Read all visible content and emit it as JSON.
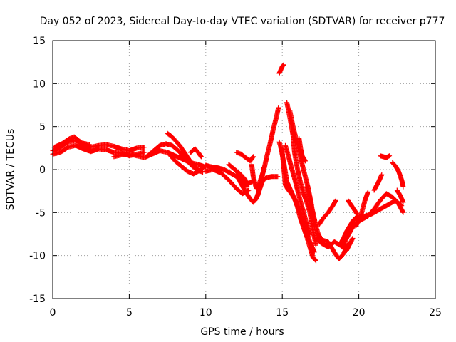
{
  "chart_data": {
    "type": "scatter",
    "title": "Day 052 of 2023, Sidereal Day-to-day VTEC variation (SDTVAR) for receiver p777",
    "xlabel": "GPS time / hours",
    "ylabel": "SDTVAR / TECUs",
    "xlim": [
      0,
      25
    ],
    "ylim": [
      -15,
      15
    ],
    "xticks": [
      0,
      5,
      10,
      15,
      20,
      25
    ],
    "yticks": [
      -15,
      -10,
      -5,
      0,
      5,
      10,
      15
    ],
    "xtick_labels": [
      "0",
      "5",
      "10",
      "15",
      "20",
      "25"
    ],
    "ytick_labels": [
      "-15",
      "-10",
      "-5",
      "0",
      "5",
      "10",
      "15"
    ],
    "grid": true,
    "marker": "+",
    "series": [
      {
        "name": "SDTVAR",
        "color": "#ff0000",
        "tracks": [
          [
            [
              0.0,
              2.2
            ],
            [
              0.5,
              2.6
            ],
            [
              1.0,
              3.2
            ],
            [
              1.5,
              3.4
            ],
            [
              2.0,
              2.9
            ],
            [
              2.5,
              2.6
            ],
            [
              3.0,
              2.8
            ],
            [
              3.5,
              2.9
            ],
            [
              4.0,
              2.7
            ],
            [
              4.5,
              2.4
            ],
            [
              5.0,
              2.2
            ],
            [
              5.5,
              2.5
            ],
            [
              6.0,
              2.6
            ]
          ],
          [
            [
              0.0,
              1.8
            ],
            [
              0.5,
              2.0
            ],
            [
              1.0,
              2.6
            ],
            [
              1.5,
              2.8
            ],
            [
              2.0,
              2.4
            ],
            [
              2.5,
              2.1
            ],
            [
              3.0,
              2.4
            ],
            [
              3.5,
              2.3
            ],
            [
              4.0,
              2.0
            ],
            [
              4.5,
              1.9
            ],
            [
              5.0,
              1.6
            ],
            [
              5.5,
              1.8
            ],
            [
              6.0,
              2.0
            ]
          ],
          [
            [
              0.1,
              2.6
            ],
            [
              0.6,
              3.0
            ],
            [
              1.1,
              3.6
            ],
            [
              1.4,
              3.8
            ],
            [
              1.9,
              3.1
            ],
            [
              2.4,
              2.9
            ]
          ],
          [
            [
              4.0,
              1.5
            ],
            [
              4.5,
              1.7
            ],
            [
              5.0,
              1.8
            ],
            [
              5.5,
              1.6
            ],
            [
              6.0,
              1.4
            ],
            [
              6.5,
              1.8
            ],
            [
              7.0,
              2.2
            ],
            [
              7.5,
              2.0
            ],
            [
              8.0,
              1.6
            ],
            [
              8.5,
              1.2
            ],
            [
              9.0,
              0.8
            ],
            [
              9.5,
              0.6
            ],
            [
              10.0,
              0.3
            ]
          ],
          [
            [
              6.2,
              1.6
            ],
            [
              6.6,
              2.2
            ],
            [
              7.0,
              2.8
            ],
            [
              7.4,
              3.0
            ],
            [
              7.8,
              2.8
            ],
            [
              8.2,
              2.2
            ],
            [
              8.6,
              1.4
            ],
            [
              9.0,
              0.6
            ],
            [
              9.4,
              0.0
            ],
            [
              9.8,
              -0.3
            ]
          ],
          [
            [
              7.5,
              4.2
            ],
            [
              7.8,
              3.8
            ],
            [
              8.0,
              3.4
            ],
            [
              8.3,
              2.8
            ],
            [
              8.6,
              2.0
            ],
            [
              8.9,
              1.2
            ],
            [
              9.2,
              0.5
            ],
            [
              9.5,
              0.0
            ]
          ],
          [
            [
              7.6,
              1.8
            ],
            [
              8.0,
              1.0
            ],
            [
              8.4,
              0.4
            ],
            [
              8.8,
              -0.2
            ],
            [
              9.2,
              -0.5
            ],
            [
              9.6,
              -0.1
            ],
            [
              10.0,
              0.4
            ]
          ],
          [
            [
              9.0,
              2.0
            ],
            [
              9.3,
              2.4
            ],
            [
              9.5,
              2.0
            ],
            [
              9.7,
              1.5
            ]
          ],
          [
            [
              10.0,
              0.5
            ],
            [
              10.4,
              0.3
            ],
            [
              10.8,
              0.2
            ],
            [
              11.2,
              0.0
            ],
            [
              11.6,
              -0.4
            ],
            [
              12.0,
              -0.8
            ],
            [
              12.4,
              -1.2
            ],
            [
              12.8,
              -1.6
            ],
            [
              13.2,
              -1.2
            ]
          ],
          [
            [
              10.0,
              -0.2
            ],
            [
              10.5,
              0.0
            ],
            [
              11.0,
              -0.4
            ],
            [
              11.5,
              -1.2
            ],
            [
              12.0,
              -2.2
            ],
            [
              12.4,
              -2.8
            ],
            [
              12.8,
              -2.4
            ]
          ],
          [
            [
              11.5,
              0.6
            ],
            [
              11.9,
              0.0
            ],
            [
              12.3,
              -0.6
            ],
            [
              12.6,
              -1.2
            ]
          ],
          [
            [
              12.0,
              -0.6
            ],
            [
              12.3,
              -1.6
            ],
            [
              12.6,
              -2.6
            ],
            [
              12.9,
              -3.4
            ],
            [
              13.1,
              -3.8
            ],
            [
              13.3,
              -3.4
            ],
            [
              13.5,
              -2.4
            ],
            [
              13.7,
              -1.4
            ],
            [
              13.9,
              -1.0
            ],
            [
              14.3,
              -0.8
            ],
            [
              14.7,
              -0.8
            ]
          ],
          [
            [
              12.0,
              -0.2
            ],
            [
              12.4,
              -1.0
            ],
            [
              12.7,
              -2.0
            ]
          ],
          [
            [
              12.0,
              2.0
            ],
            [
              12.3,
              1.8
            ],
            [
              12.6,
              1.4
            ],
            [
              12.9,
              1.0
            ],
            [
              13.1,
              1.5
            ]
          ],
          [
            [
              13.0,
              0.6
            ],
            [
              13.1,
              -0.8
            ],
            [
              13.3,
              -2.2
            ],
            [
              13.5,
              -1.6
            ],
            [
              13.8,
              0.0
            ],
            [
              14.0,
              1.6
            ],
            [
              14.2,
              3.0
            ],
            [
              14.4,
              4.6
            ],
            [
              14.6,
              6.0
            ],
            [
              14.75,
              7.2
            ]
          ],
          [
            [
              13.2,
              -3.6
            ],
            [
              13.4,
              -3.0
            ],
            [
              13.6,
              -1.6
            ],
            [
              13.8,
              0.2
            ]
          ],
          [
            [
              14.8,
              11.2
            ],
            [
              14.9,
              11.6
            ],
            [
              15.0,
              12.0
            ],
            [
              15.1,
              12.2
            ]
          ],
          [
            [
              14.8,
              3.2
            ],
            [
              15.0,
              2.0
            ],
            [
              15.1,
              0.2
            ],
            [
              15.2,
              -1.8
            ],
            [
              15.4,
              -2.4
            ],
            [
              15.6,
              -2.8
            ],
            [
              15.8,
              -3.4
            ],
            [
              16.0,
              -4.4
            ],
            [
              16.2,
              -5.8
            ],
            [
              16.4,
              -6.8
            ],
            [
              16.6,
              -7.8
            ],
            [
              16.8,
              -9.0
            ],
            [
              17.0,
              -10.2
            ],
            [
              17.2,
              -10.6
            ]
          ],
          [
            [
              14.9,
              2.6
            ],
            [
              15.1,
              0.8
            ],
            [
              15.3,
              -1.4
            ],
            [
              15.6,
              -2.6
            ],
            [
              15.9,
              -3.8
            ],
            [
              16.2,
              -5.2
            ],
            [
              16.5,
              -6.8
            ],
            [
              16.8,
              -8.4
            ],
            [
              17.1,
              -9.6
            ]
          ],
          [
            [
              15.2,
              2.8
            ],
            [
              15.4,
              1.6
            ],
            [
              15.6,
              0.2
            ],
            [
              15.8,
              -1.0
            ],
            [
              16.0,
              -2.4
            ],
            [
              16.2,
              -3.8
            ],
            [
              16.4,
              -5.0
            ],
            [
              16.6,
              -6.4
            ],
            [
              16.8,
              -7.6
            ]
          ],
          [
            [
              15.3,
              7.8
            ],
            [
              15.5,
              6.0
            ],
            [
              15.7,
              4.0
            ],
            [
              15.8,
              2.0
            ],
            [
              16.0,
              0.0
            ],
            [
              16.2,
              -1.6
            ],
            [
              16.4,
              -2.8
            ],
            [
              16.6,
              -3.8
            ],
            [
              16.8,
              -5.0
            ],
            [
              17.0,
              -7.0
            ],
            [
              17.2,
              -8.8
            ]
          ],
          [
            [
              15.5,
              6.8
            ],
            [
              15.7,
              5.0
            ],
            [
              15.9,
              3.6
            ],
            [
              16.1,
              2.2
            ],
            [
              16.3,
              0.6
            ],
            [
              16.5,
              -0.8
            ],
            [
              16.7,
              -2.2
            ],
            [
              16.9,
              -4.0
            ],
            [
              17.0,
              -5.6
            ]
          ],
          [
            [
              16.1,
              3.6
            ],
            [
              16.2,
              2.4
            ],
            [
              16.3,
              1.6
            ],
            [
              16.5,
              1.0
            ]
          ],
          [
            [
              16.6,
              -2.0
            ],
            [
              16.8,
              -3.4
            ],
            [
              17.0,
              -5.0
            ],
            [
              17.2,
              -6.6
            ],
            [
              17.4,
              -7.8
            ],
            [
              17.6,
              -8.4
            ]
          ],
          [
            [
              17.2,
              -8.0
            ],
            [
              17.6,
              -8.6
            ],
            [
              18.0,
              -9.0
            ],
            [
              18.4,
              -8.4
            ],
            [
              18.8,
              -8.8
            ],
            [
              19.2,
              -9.4
            ],
            [
              19.6,
              -8.0
            ]
          ],
          [
            [
              17.3,
              -7.4
            ],
            [
              17.6,
              -8.2
            ],
            [
              18.0,
              -8.4
            ],
            [
              18.4,
              -9.6
            ],
            [
              18.7,
              -10.4
            ],
            [
              19.0,
              -9.8
            ],
            [
              19.3,
              -8.6
            ]
          ],
          [
            [
              17.4,
              -6.4
            ],
            [
              17.7,
              -5.6
            ],
            [
              18.0,
              -5.0
            ],
            [
              18.3,
              -4.2
            ],
            [
              18.5,
              -3.6
            ]
          ],
          [
            [
              18.8,
              -8.6
            ],
            [
              19.0,
              -8.0
            ],
            [
              19.2,
              -7.2
            ],
            [
              19.4,
              -6.6
            ],
            [
              19.6,
              -6.0
            ],
            [
              19.8,
              -5.6
            ],
            [
              20.0,
              -5.6
            ],
            [
              20.4,
              -5.4
            ],
            [
              20.8,
              -5.2
            ],
            [
              21.2,
              -4.8
            ],
            [
              21.6,
              -4.4
            ],
            [
              22.0,
              -4.0
            ],
            [
              22.4,
              -3.6
            ],
            [
              22.8,
              -4.2
            ]
          ],
          [
            [
              18.9,
              -9.0
            ],
            [
              19.2,
              -8.0
            ],
            [
              19.5,
              -7.0
            ],
            [
              19.8,
              -6.2
            ],
            [
              20.2,
              -5.8
            ],
            [
              20.6,
              -5.4
            ],
            [
              21.0,
              -4.6
            ],
            [
              21.4,
              -3.6
            ],
            [
              21.8,
              -2.8
            ],
            [
              22.2,
              -3.2
            ],
            [
              22.6,
              -4.0
            ],
            [
              22.9,
              -5.0
            ]
          ],
          [
            [
              19.3,
              -3.6
            ],
            [
              19.6,
              -4.4
            ],
            [
              19.9,
              -5.2
            ]
          ],
          [
            [
              19.8,
              -6.6
            ],
            [
              20.1,
              -5.6
            ],
            [
              20.4,
              -3.6
            ],
            [
              20.6,
              -2.6
            ]
          ],
          [
            [
              21.0,
              -2.4
            ],
            [
              21.3,
              -1.4
            ],
            [
              21.5,
              -0.6
            ]
          ],
          [
            [
              21.4,
              1.6
            ],
            [
              21.6,
              1.5
            ],
            [
              21.8,
              1.4
            ],
            [
              22.0,
              1.6
            ]
          ],
          [
            [
              22.2,
              0.8
            ],
            [
              22.4,
              0.4
            ],
            [
              22.6,
              -0.2
            ],
            [
              22.8,
              -1.2
            ],
            [
              22.9,
              -2.0
            ]
          ],
          [
            [
              22.5,
              -2.4
            ],
            [
              22.7,
              -3.0
            ],
            [
              22.9,
              -3.8
            ]
          ]
        ]
      }
    ]
  }
}
